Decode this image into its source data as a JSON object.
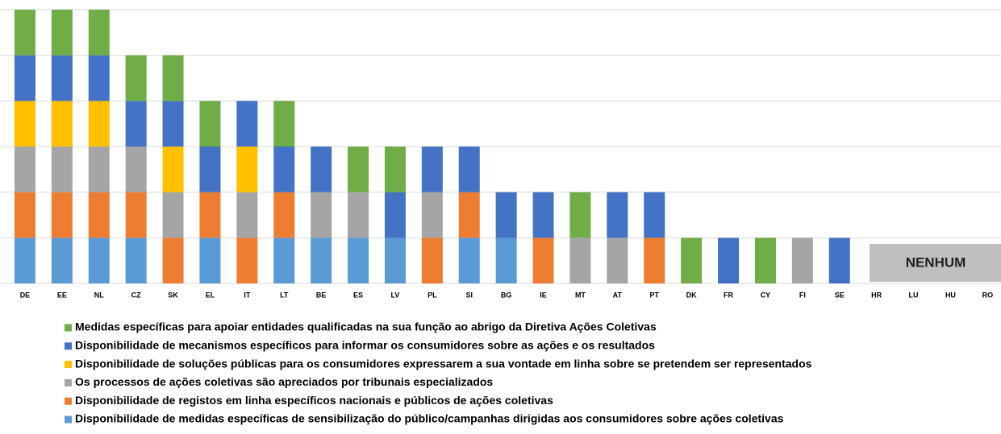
{
  "chart_data": {
    "type": "stacked_bar",
    "categories": [
      "DE",
      "EE",
      "NL",
      "CZ",
      "SK",
      "EL",
      "IT",
      "LT",
      "BE",
      "ES",
      "LV",
      "PL",
      "SI",
      "BG",
      "IE",
      "MT",
      "AT",
      "PT",
      "DK",
      "FR",
      "CY",
      "FI",
      "SE",
      "HR",
      "LU",
      "HU",
      "RO"
    ],
    "series": [
      {
        "name": "Medidas específicas para apoiar entidades qualificadas na sua função ao abrigo da Diretiva Ações Coletivas",
        "color": "#70ad47",
        "values": [
          1,
          1,
          1,
          1,
          1,
          1,
          0,
          1,
          0,
          1,
          1,
          0,
          0,
          0,
          0,
          1,
          0,
          0,
          1,
          0,
          1,
          0,
          0,
          0,
          0,
          0,
          0
        ]
      },
      {
        "name": "Disponibilidade de mecanismos específicos para informar os consumidores sobre as ações e os resultados",
        "color": "#4472c4",
        "values": [
          1,
          1,
          1,
          1,
          1,
          1,
          1,
          1,
          1,
          0,
          1,
          1,
          1,
          1,
          1,
          0,
          1,
          1,
          0,
          1,
          0,
          0,
          1,
          0,
          0,
          0,
          0
        ]
      },
      {
        "name": "Disponibilidade de soluções públicas para os consumidores expressarem a sua vontade em linha sobre se pretendem ser representados",
        "color": "#ffc000",
        "values": [
          1,
          1,
          1,
          0,
          1,
          0,
          1,
          0,
          0,
          0,
          0,
          0,
          0,
          0,
          0,
          0,
          0,
          0,
          0,
          0,
          0,
          0,
          0,
          0,
          0,
          0,
          0
        ]
      },
      {
        "name": "Os processos de ações coletivas são apreciados por tribunais especializados",
        "color": "#a5a5a5",
        "values": [
          1,
          1,
          1,
          1,
          1,
          0,
          1,
          0,
          1,
          1,
          0,
          1,
          0,
          0,
          0,
          1,
          1,
          0,
          0,
          0,
          0,
          1,
          0,
          0,
          0,
          0,
          0
        ]
      },
      {
        "name": "Disponibilidade de registos em linha específicos nacionais e públicos de ações coletivas",
        "color": "#ed7d31",
        "values": [
          1,
          1,
          1,
          1,
          1,
          1,
          1,
          1,
          0,
          0,
          0,
          1,
          1,
          0,
          1,
          0,
          0,
          1,
          0,
          0,
          0,
          0,
          0,
          0,
          0,
          0,
          0
        ]
      },
      {
        "name": "Disponibilidade de medidas específicas de sensibilização do público/campanhas dirigidas aos consumidores sobre ações coletivas",
        "color": "#5b9bd5",
        "values": [
          1,
          1,
          1,
          1,
          0,
          1,
          0,
          1,
          1,
          1,
          1,
          0,
          1,
          1,
          0,
          0,
          0,
          0,
          0,
          0,
          0,
          0,
          0,
          0,
          0,
          0,
          0
        ]
      }
    ],
    "annotation": "NENHUM",
    "ylim": [
      0,
      6
    ],
    "yticks": [
      0,
      1,
      2,
      3,
      4,
      5,
      6
    ],
    "grid": true,
    "legend": "bottom"
  }
}
